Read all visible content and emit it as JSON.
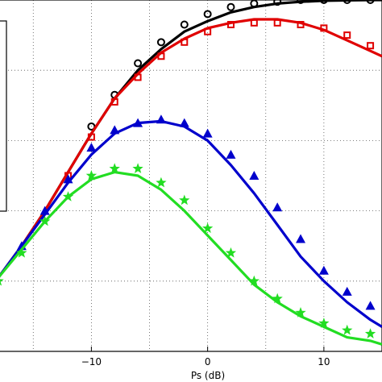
{
  "chart_data": {
    "type": "line",
    "xlabel": "Ps (dB)",
    "ylabel": "",
    "xlim": [
      -18,
      15
    ],
    "ylim": [
      0,
      1
    ],
    "grid": true,
    "x_ticks": [
      {
        "value": -10,
        "label": "−10"
      },
      {
        "value": 0,
        "label": "0"
      },
      {
        "value": 10,
        "label": "10"
      }
    ],
    "series": [
      {
        "color": "#000000",
        "marker": "circle",
        "line": {
          "x": [
            -18,
            -16,
            -14,
            -12,
            -10,
            -8,
            -6,
            -4,
            -2,
            0,
            2,
            4,
            6,
            8,
            10,
            12,
            14,
            15
          ],
          "y": [
            0.21,
            0.3,
            0.4,
            0.51,
            0.62,
            0.72,
            0.8,
            0.86,
            0.91,
            0.94,
            0.965,
            0.98,
            0.99,
            0.995,
            0.998,
            0.999,
            1.0,
            1.0
          ]
        },
        "markers": {
          "x": [
            -10,
            -8,
            -6,
            -4,
            -2,
            0,
            2,
            4,
            6,
            8,
            10,
            12,
            14
          ],
          "y": [
            0.64,
            0.73,
            0.82,
            0.88,
            0.93,
            0.96,
            0.98,
            0.99,
            0.995,
            1.0,
            1.0,
            1.0,
            1.0
          ]
        }
      },
      {
        "color": "#e00000",
        "marker": "square",
        "line": {
          "x": [
            -18,
            -16,
            -14,
            -12,
            -10,
            -8,
            -6,
            -4,
            -2,
            0,
            2,
            4,
            6,
            8,
            10,
            12,
            14,
            15
          ],
          "y": [
            0.21,
            0.3,
            0.4,
            0.51,
            0.62,
            0.72,
            0.79,
            0.85,
            0.89,
            0.92,
            0.935,
            0.945,
            0.945,
            0.935,
            0.915,
            0.885,
            0.855,
            0.84
          ]
        },
        "markers": {
          "x": [
            -12,
            -10,
            -8,
            -6,
            -4,
            -2,
            0,
            2,
            4,
            6,
            8,
            10,
            12,
            14
          ],
          "y": [
            0.5,
            0.61,
            0.71,
            0.78,
            0.84,
            0.88,
            0.91,
            0.93,
            0.935,
            0.935,
            0.93,
            0.92,
            0.9,
            0.87
          ]
        }
      },
      {
        "color": "#0000cc",
        "marker": "triangle",
        "line": {
          "x": [
            -18,
            -16,
            -14,
            -12,
            -10,
            -8,
            -6,
            -4,
            -2,
            0,
            2,
            4,
            6,
            8,
            10,
            12,
            14,
            15
          ],
          "y": [
            0.21,
            0.3,
            0.39,
            0.48,
            0.56,
            0.62,
            0.65,
            0.655,
            0.64,
            0.6,
            0.53,
            0.45,
            0.36,
            0.27,
            0.2,
            0.14,
            0.09,
            0.07
          ]
        },
        "markers": {
          "x": [
            -16,
            -14,
            -12,
            -10,
            -8,
            -6,
            -4,
            -2,
            0,
            2,
            4,
            6,
            8,
            10,
            12,
            14
          ],
          "y": [
            0.3,
            0.4,
            0.49,
            0.58,
            0.63,
            0.65,
            0.66,
            0.65,
            0.62,
            0.56,
            0.5,
            0.41,
            0.32,
            0.23,
            0.17,
            0.13
          ]
        }
      },
      {
        "color": "#22dd22",
        "marker": "star",
        "line": {
          "x": [
            -18,
            -16,
            -14,
            -12,
            -10,
            -8,
            -6,
            -4,
            -2,
            0,
            2,
            4,
            6,
            8,
            10,
            12,
            14,
            15
          ],
          "y": [
            0.21,
            0.29,
            0.37,
            0.44,
            0.49,
            0.51,
            0.5,
            0.46,
            0.4,
            0.33,
            0.26,
            0.19,
            0.14,
            0.1,
            0.07,
            0.04,
            0.03,
            0.02
          ]
        },
        "markers": {
          "x": [
            -18,
            -16,
            -14,
            -12,
            -10,
            -8,
            -6,
            -4,
            -2,
            0,
            2,
            4,
            6,
            8,
            10,
            12,
            14
          ],
          "y": [
            0.2,
            0.28,
            0.37,
            0.44,
            0.5,
            0.52,
            0.52,
            0.48,
            0.43,
            0.35,
            0.28,
            0.2,
            0.15,
            0.11,
            0.08,
            0.06,
            0.05
          ]
        }
      }
    ]
  }
}
